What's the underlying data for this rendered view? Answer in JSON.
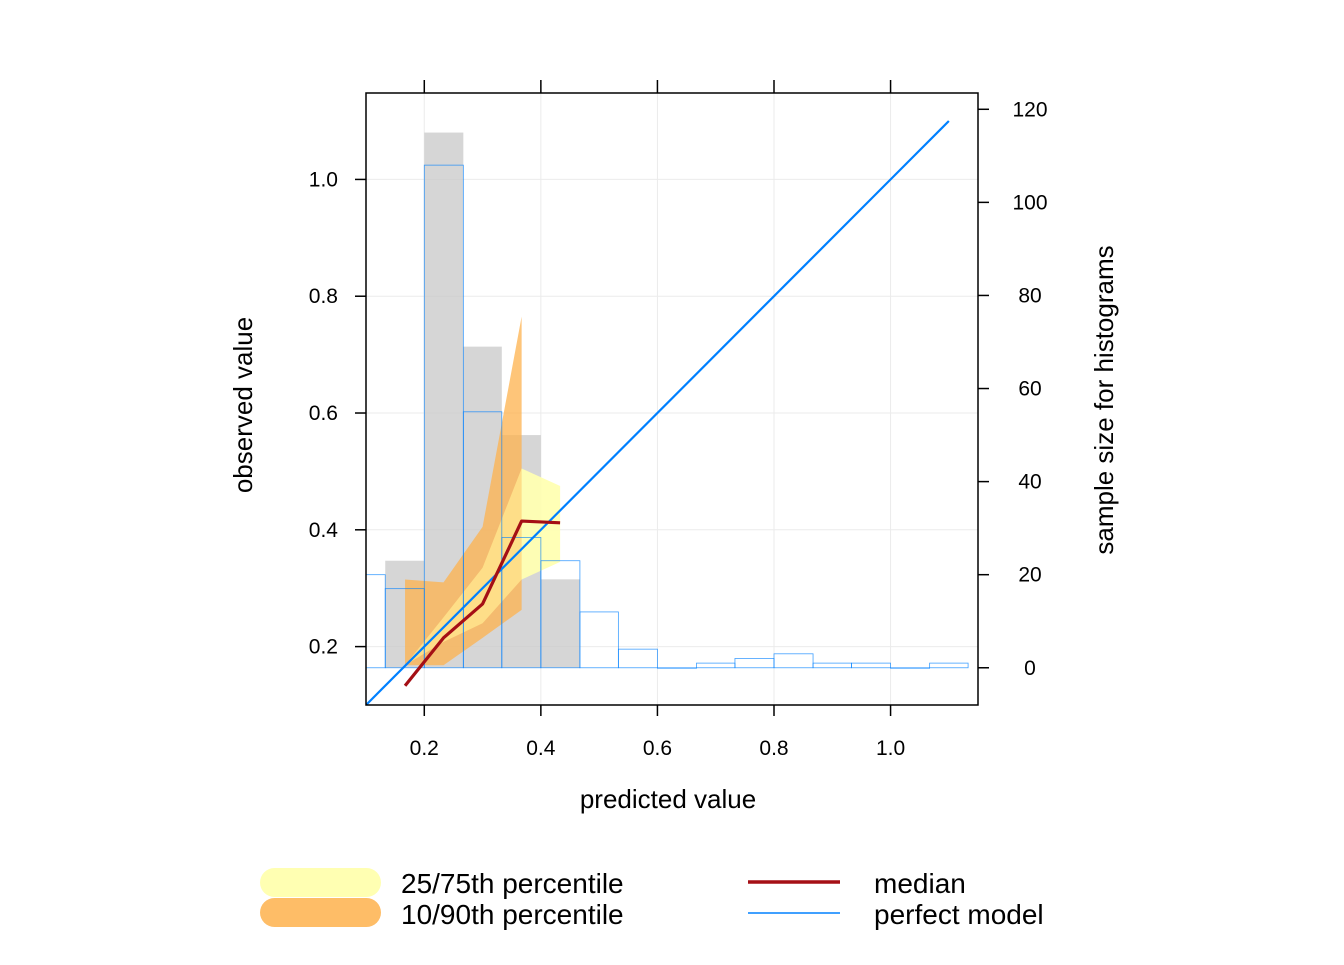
{
  "chart_data": {
    "type": "line",
    "xlabel": "predicted value",
    "ylabel": "observed value",
    "y2label": "sample size for histograms",
    "xlim": [
      0.1,
      1.15
    ],
    "ylim": [
      0.1,
      1.148
    ],
    "y2lim": [
      -8,
      123.5
    ],
    "x_ticks": [
      "0.2",
      "0.4",
      "0.6",
      "0.8",
      "1.0"
    ],
    "y_ticks": [
      "0.2",
      "0.4",
      "0.6",
      "0.8",
      "1.0"
    ],
    "y2_ticks": [
      "0",
      "20",
      "40",
      "60",
      "80",
      "100",
      "120"
    ],
    "grid": true,
    "legend_position": "bottom",
    "colors": {
      "band_25_75": "#FFFFB2",
      "band_10_90": "#FEB24C",
      "median": "#A50F15",
      "perfect_model": "#0080FF",
      "observed_hist_fill": "#C8C8C8",
      "predicted_hist_outline": "#0080FF"
    },
    "perfect_model": {
      "name": "perfect model",
      "x": [
        0.1,
        1.1
      ],
      "y": [
        0.1,
        1.1
      ]
    },
    "median": {
      "name": "median",
      "x": [
        0.167,
        0.233,
        0.3,
        0.367,
        0.433
      ],
      "y": [
        0.133,
        0.215,
        0.273,
        0.415,
        0.412
      ]
    },
    "band_10_90": {
      "name": "10/90th percentile",
      "x": [
        0.167,
        0.233,
        0.3,
        0.367
      ],
      "lower": [
        0.168,
        0.168,
        0.215,
        0.263
      ],
      "upper": [
        0.315,
        0.31,
        0.405,
        0.765
      ]
    },
    "band_25_75": {
      "name": "25/75th percentile",
      "x": [
        0.167,
        0.233,
        0.3,
        0.367,
        0.433
      ],
      "lower": [
        0.168,
        0.208,
        0.24,
        0.315,
        0.345
      ],
      "upper": [
        0.168,
        0.25,
        0.335,
        0.505,
        0.475
      ]
    },
    "observed_histogram": {
      "bin_edges": [
        0.133,
        0.2,
        0.267,
        0.333,
        0.4,
        0.467
      ],
      "counts": [
        23,
        115,
        69,
        50,
        19
      ]
    },
    "predicted_histogram": {
      "bin_edges": [
        0.1,
        0.133,
        0.2,
        0.267,
        0.333,
        0.4,
        0.467,
        0.533,
        0.6,
        0.667,
        0.733,
        0.8,
        0.867,
        0.933,
        1.0,
        1.067,
        1.133
      ],
      "counts": [
        20,
        17,
        108,
        55,
        28,
        23,
        12,
        4,
        0,
        1,
        2,
        3,
        1,
        1,
        0,
        1
      ]
    },
    "legend": [
      {
        "label": "25/75th percentile",
        "kind": "band",
        "color": "#FFFFB2"
      },
      {
        "label": "10/90th percentile",
        "kind": "band",
        "color": "#FEB24C"
      },
      {
        "label": "median",
        "kind": "line",
        "color": "#A50F15"
      },
      {
        "label": "perfect model",
        "kind": "line",
        "color": "#0080FF"
      }
    ]
  }
}
